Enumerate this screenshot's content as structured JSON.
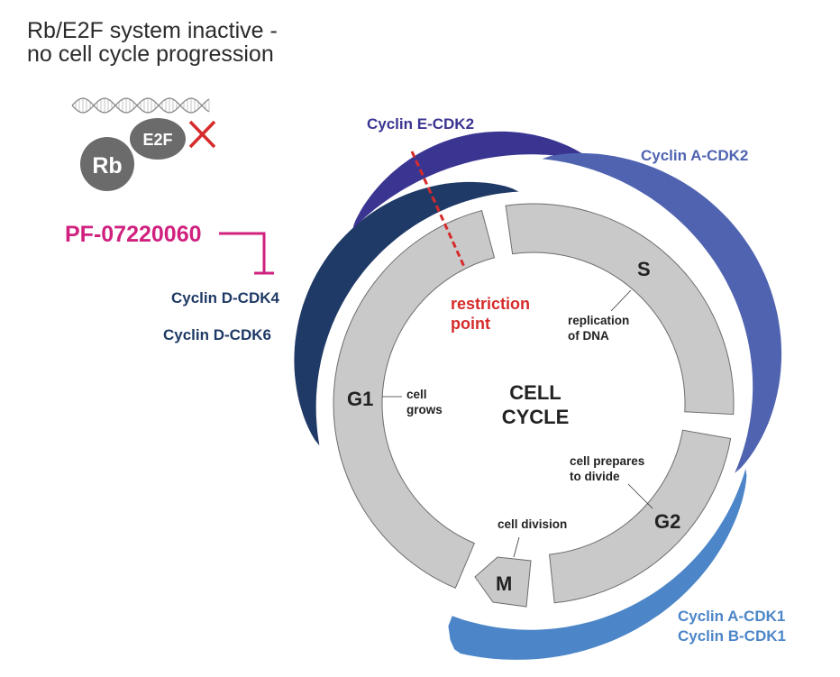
{
  "title": {
    "line1": "Rb/E2F system inactive -",
    "line2": "no cell cycle progression"
  },
  "proteins": {
    "rb": "Rb",
    "e2f": "E2F"
  },
  "drug": {
    "name": "PF-07220060"
  },
  "complexes": {
    "cyclin_d_cdk4": "Cyclin D-CDK4",
    "cyclin_d_cdk6": "Cyclin D-CDK6",
    "cyclin_e_cdk2": "Cyclin E-CDK2",
    "cyclin_a_cdk2": "Cyclin A-CDK2",
    "cyclin_a_cdk1": "Cyclin A-CDK1",
    "cyclin_b_cdk1": "Cyclin B-CDK1"
  },
  "restriction_point": {
    "line1": "restriction",
    "line2": "point"
  },
  "center": {
    "line1": "CELL",
    "line2": "CYCLE"
  },
  "phases": {
    "g1": {
      "label": "G1",
      "note1": "cell",
      "note2": "grows"
    },
    "s": {
      "label": "S",
      "note1": "replication",
      "note2": "of DNA"
    },
    "g2": {
      "label": "G2",
      "note1": "cell prepares",
      "note2": "to divide"
    },
    "m": {
      "label": "M",
      "note1": "cell division"
    }
  },
  "colors": {
    "cyclin_d": "#1f3a66",
    "cyclin_e": "#3b3592",
    "cyclin_a_cdk2": "#4f63b0",
    "cyclin_cdk1": "#4c86c8",
    "drug": "#d0217f",
    "inhibition_mark": "#d62b2b",
    "phase_fill": "#c9c9c9"
  }
}
